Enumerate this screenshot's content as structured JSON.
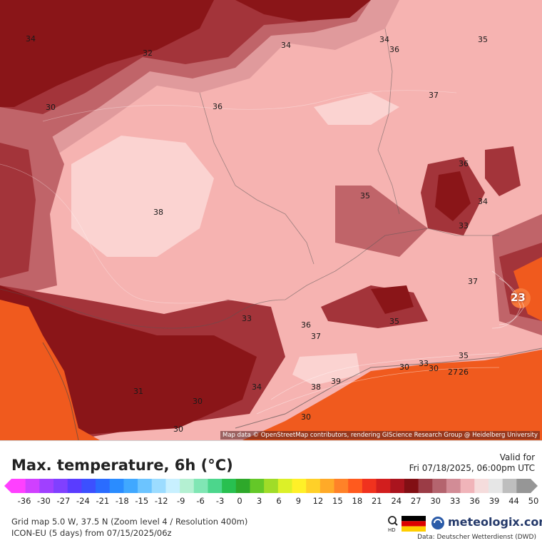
{
  "map": {
    "attribution": "Map data © OpenStreetMap contributors, rendering GIScience Research Group @ Heidelberg University",
    "contour_labels": [
      {
        "text": "34",
        "pos": "tl"
      },
      {
        "text": "32",
        "pos": "t1"
      },
      {
        "text": "30",
        "pos": "l1"
      },
      {
        "text": "34",
        "pos": "t2"
      },
      {
        "text": "34",
        "pos": "t3"
      },
      {
        "text": "36",
        "pos": "t4"
      },
      {
        "text": "35",
        "pos": "t5"
      },
      {
        "text": "36",
        "pos": "c1"
      },
      {
        "text": "37",
        "pos": "c2"
      },
      {
        "text": "38",
        "pos": "c3"
      },
      {
        "text": "36",
        "pos": "e1"
      },
      {
        "text": "35",
        "pos": "e2"
      },
      {
        "text": "34",
        "pos": "e3"
      },
      {
        "text": "33",
        "pos": "e4"
      },
      {
        "text": "37",
        "pos": "e5"
      },
      {
        "text": "35",
        "pos": "e6"
      },
      {
        "text": "33",
        "pos": "s1"
      },
      {
        "text": "36",
        "pos": "s2"
      },
      {
        "text": "37",
        "pos": "s3"
      },
      {
        "text": "34",
        "pos": "s4"
      },
      {
        "text": "38",
        "pos": "s5"
      },
      {
        "text": "39",
        "pos": "s6"
      },
      {
        "text": "35",
        "pos": "s7"
      },
      {
        "text": "31",
        "pos": "s8"
      },
      {
        "text": "30",
        "pos": "s9"
      },
      {
        "text": "33",
        "pos": "s10"
      },
      {
        "text": "30",
        "pos": "s11"
      },
      {
        "text": "27",
        "pos": "s12"
      },
      {
        "text": "26",
        "pos": "s13"
      },
      {
        "text": "30",
        "pos": "s14"
      },
      {
        "text": "30",
        "pos": "s15"
      },
      {
        "text": "30",
        "pos": "s16"
      }
    ],
    "big_label": "23",
    "colors": {
      "deep": "#8a1518",
      "dark": "#a3343a",
      "mid": "#c06469",
      "light": "#e09a9c",
      "pale": "#f6b3b1",
      "palest": "#fbd3d1",
      "sea": "#f05a1e",
      "sea_dark": "#c8341a"
    }
  },
  "footer": {
    "title": "Max. temperature, 6h (°C)",
    "valid_label": "Valid for",
    "valid_time": "Fri 07/18/2025, 06:00pm UTC",
    "scale_values": [
      "-36",
      "-30",
      "-27",
      "-24",
      "-21",
      "-18",
      "-15",
      "-12",
      "-9",
      "-6",
      "-3",
      "0",
      "3",
      "6",
      "9",
      "12",
      "15",
      "18",
      "21",
      "24",
      "27",
      "30",
      "33",
      "36",
      "39",
      "44",
      "50"
    ],
    "grid_info": "Grid map 5.0 W, 37.5 N (Zoom level 4 / Resolution 400m)",
    "model_info": "ICON-EU (5 days) from 07/15/2025/06z",
    "hd_label": "HD",
    "brand": "meteologix.com",
    "data_source": "Data: Deutscher Wetterdienst (DWD)",
    "colorbar_colors": [
      "#ff40ff",
      "#d040ff",
      "#a040ff",
      "#8040ff",
      "#5a3cff",
      "#3c50ff",
      "#2a6cff",
      "#2a8cff",
      "#40a8ff",
      "#6cc4ff",
      "#9cdcff",
      "#c8f0ff",
      "#b4f0d2",
      "#80e6b4",
      "#4cd68c",
      "#28c050",
      "#2ea82a",
      "#64c828",
      "#a0dc28",
      "#dcf028",
      "#fff028",
      "#ffd028",
      "#ffaa28",
      "#ff8228",
      "#ff5a1e",
      "#f0321e",
      "#d21e1e",
      "#aa141e",
      "#820f14",
      "#9b3c46",
      "#b4646e",
      "#d28c96",
      "#f0b4b9",
      "#f5dcdc",
      "#e6e6e6",
      "#bebebe",
      "#969696"
    ]
  }
}
